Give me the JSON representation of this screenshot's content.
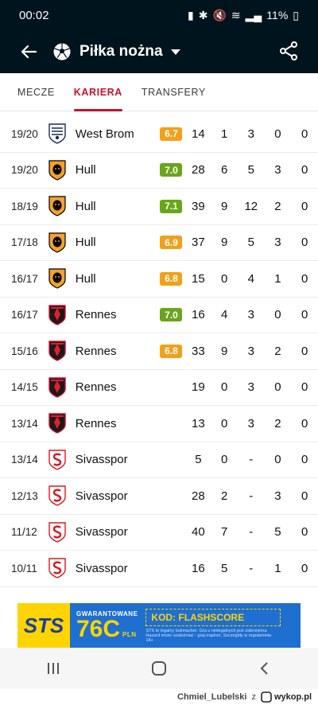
{
  "status": {
    "time": "00:02",
    "battery": "11%"
  },
  "appbar": {
    "title": "Piłka nożna"
  },
  "tabs": [
    "MECZE",
    "KARIERA",
    "TRANSFERY"
  ],
  "colors": {
    "green": "#6aa51b",
    "orange": "#f2a01a",
    "accent": "#c8102e"
  },
  "rows": [
    {
      "season": "19/20",
      "team": "West Brom",
      "rating": "6.7",
      "rating_color": "orange",
      "logo": "wba",
      "c1": "14",
      "c2": "1",
      "c3": "3",
      "c4": "0",
      "c5": "0"
    },
    {
      "season": "19/20",
      "team": "Hull",
      "rating": "7.0",
      "rating_color": "green",
      "logo": "hull",
      "c1": "28",
      "c2": "6",
      "c3": "5",
      "c4": "3",
      "c5": "0"
    },
    {
      "season": "18/19",
      "team": "Hull",
      "rating": "7.1",
      "rating_color": "green",
      "logo": "hull",
      "c1": "39",
      "c2": "9",
      "c3": "12",
      "c4": "2",
      "c5": "0"
    },
    {
      "season": "17/18",
      "team": "Hull",
      "rating": "6.9",
      "rating_color": "orange",
      "logo": "hull",
      "c1": "37",
      "c2": "9",
      "c3": "5",
      "c4": "3",
      "c5": "0"
    },
    {
      "season": "16/17",
      "team": "Hull",
      "rating": "6.8",
      "rating_color": "orange",
      "logo": "hull",
      "c1": "15",
      "c2": "0",
      "c3": "4",
      "c4": "1",
      "c5": "0"
    },
    {
      "season": "16/17",
      "team": "Rennes",
      "rating": "7.0",
      "rating_color": "green",
      "logo": "rennes",
      "c1": "16",
      "c2": "4",
      "c3": "3",
      "c4": "0",
      "c5": "0"
    },
    {
      "season": "15/16",
      "team": "Rennes",
      "rating": "6.8",
      "rating_color": "orange",
      "logo": "rennes",
      "c1": "33",
      "c2": "9",
      "c3": "3",
      "c4": "2",
      "c5": "0"
    },
    {
      "season": "14/15",
      "team": "Rennes",
      "rating": "",
      "rating_color": "",
      "logo": "rennes",
      "c1": "19",
      "c2": "0",
      "c3": "3",
      "c4": "0",
      "c5": "0"
    },
    {
      "season": "13/14",
      "team": "Rennes",
      "rating": "",
      "rating_color": "",
      "logo": "rennes",
      "c1": "13",
      "c2": "0",
      "c3": "3",
      "c4": "2",
      "c5": "0"
    },
    {
      "season": "13/14",
      "team": "Sivasspor",
      "rating": "",
      "rating_color": "",
      "logo": "sivas",
      "c1": "5",
      "c2": "0",
      "c3": "-",
      "c4": "0",
      "c5": "0"
    },
    {
      "season": "12/13",
      "team": "Sivasspor",
      "rating": "",
      "rating_color": "",
      "logo": "sivas",
      "c1": "28",
      "c2": "2",
      "c3": "-",
      "c4": "3",
      "c5": "0"
    },
    {
      "season": "11/12",
      "team": "Sivasspor",
      "rating": "",
      "rating_color": "",
      "logo": "sivas",
      "c1": "40",
      "c2": "7",
      "c3": "-",
      "c4": "5",
      "c5": "0"
    },
    {
      "season": "10/11",
      "team": "Sivasspor",
      "rating": "",
      "rating_color": "",
      "logo": "sivas",
      "c1": "16",
      "c2": "5",
      "c3": "-",
      "c4": "1",
      "c5": "0"
    }
  ],
  "ad": {
    "brand": "STS",
    "headline": "GWARANTOWANE",
    "amount": "76C",
    "currency": "PLN",
    "code": "KOD: FLASHSCORE",
    "disclaimer": "STS to legalny bukmacher. Gra u nielegalnych jest zabroniona. Hazard może uzależniać - graj mądrze. Szczegóły w regulaminie. 18+"
  },
  "footer": {
    "user": "Chmiel_Lubelski",
    "suffix": "z",
    "site": "wykop.pl"
  }
}
